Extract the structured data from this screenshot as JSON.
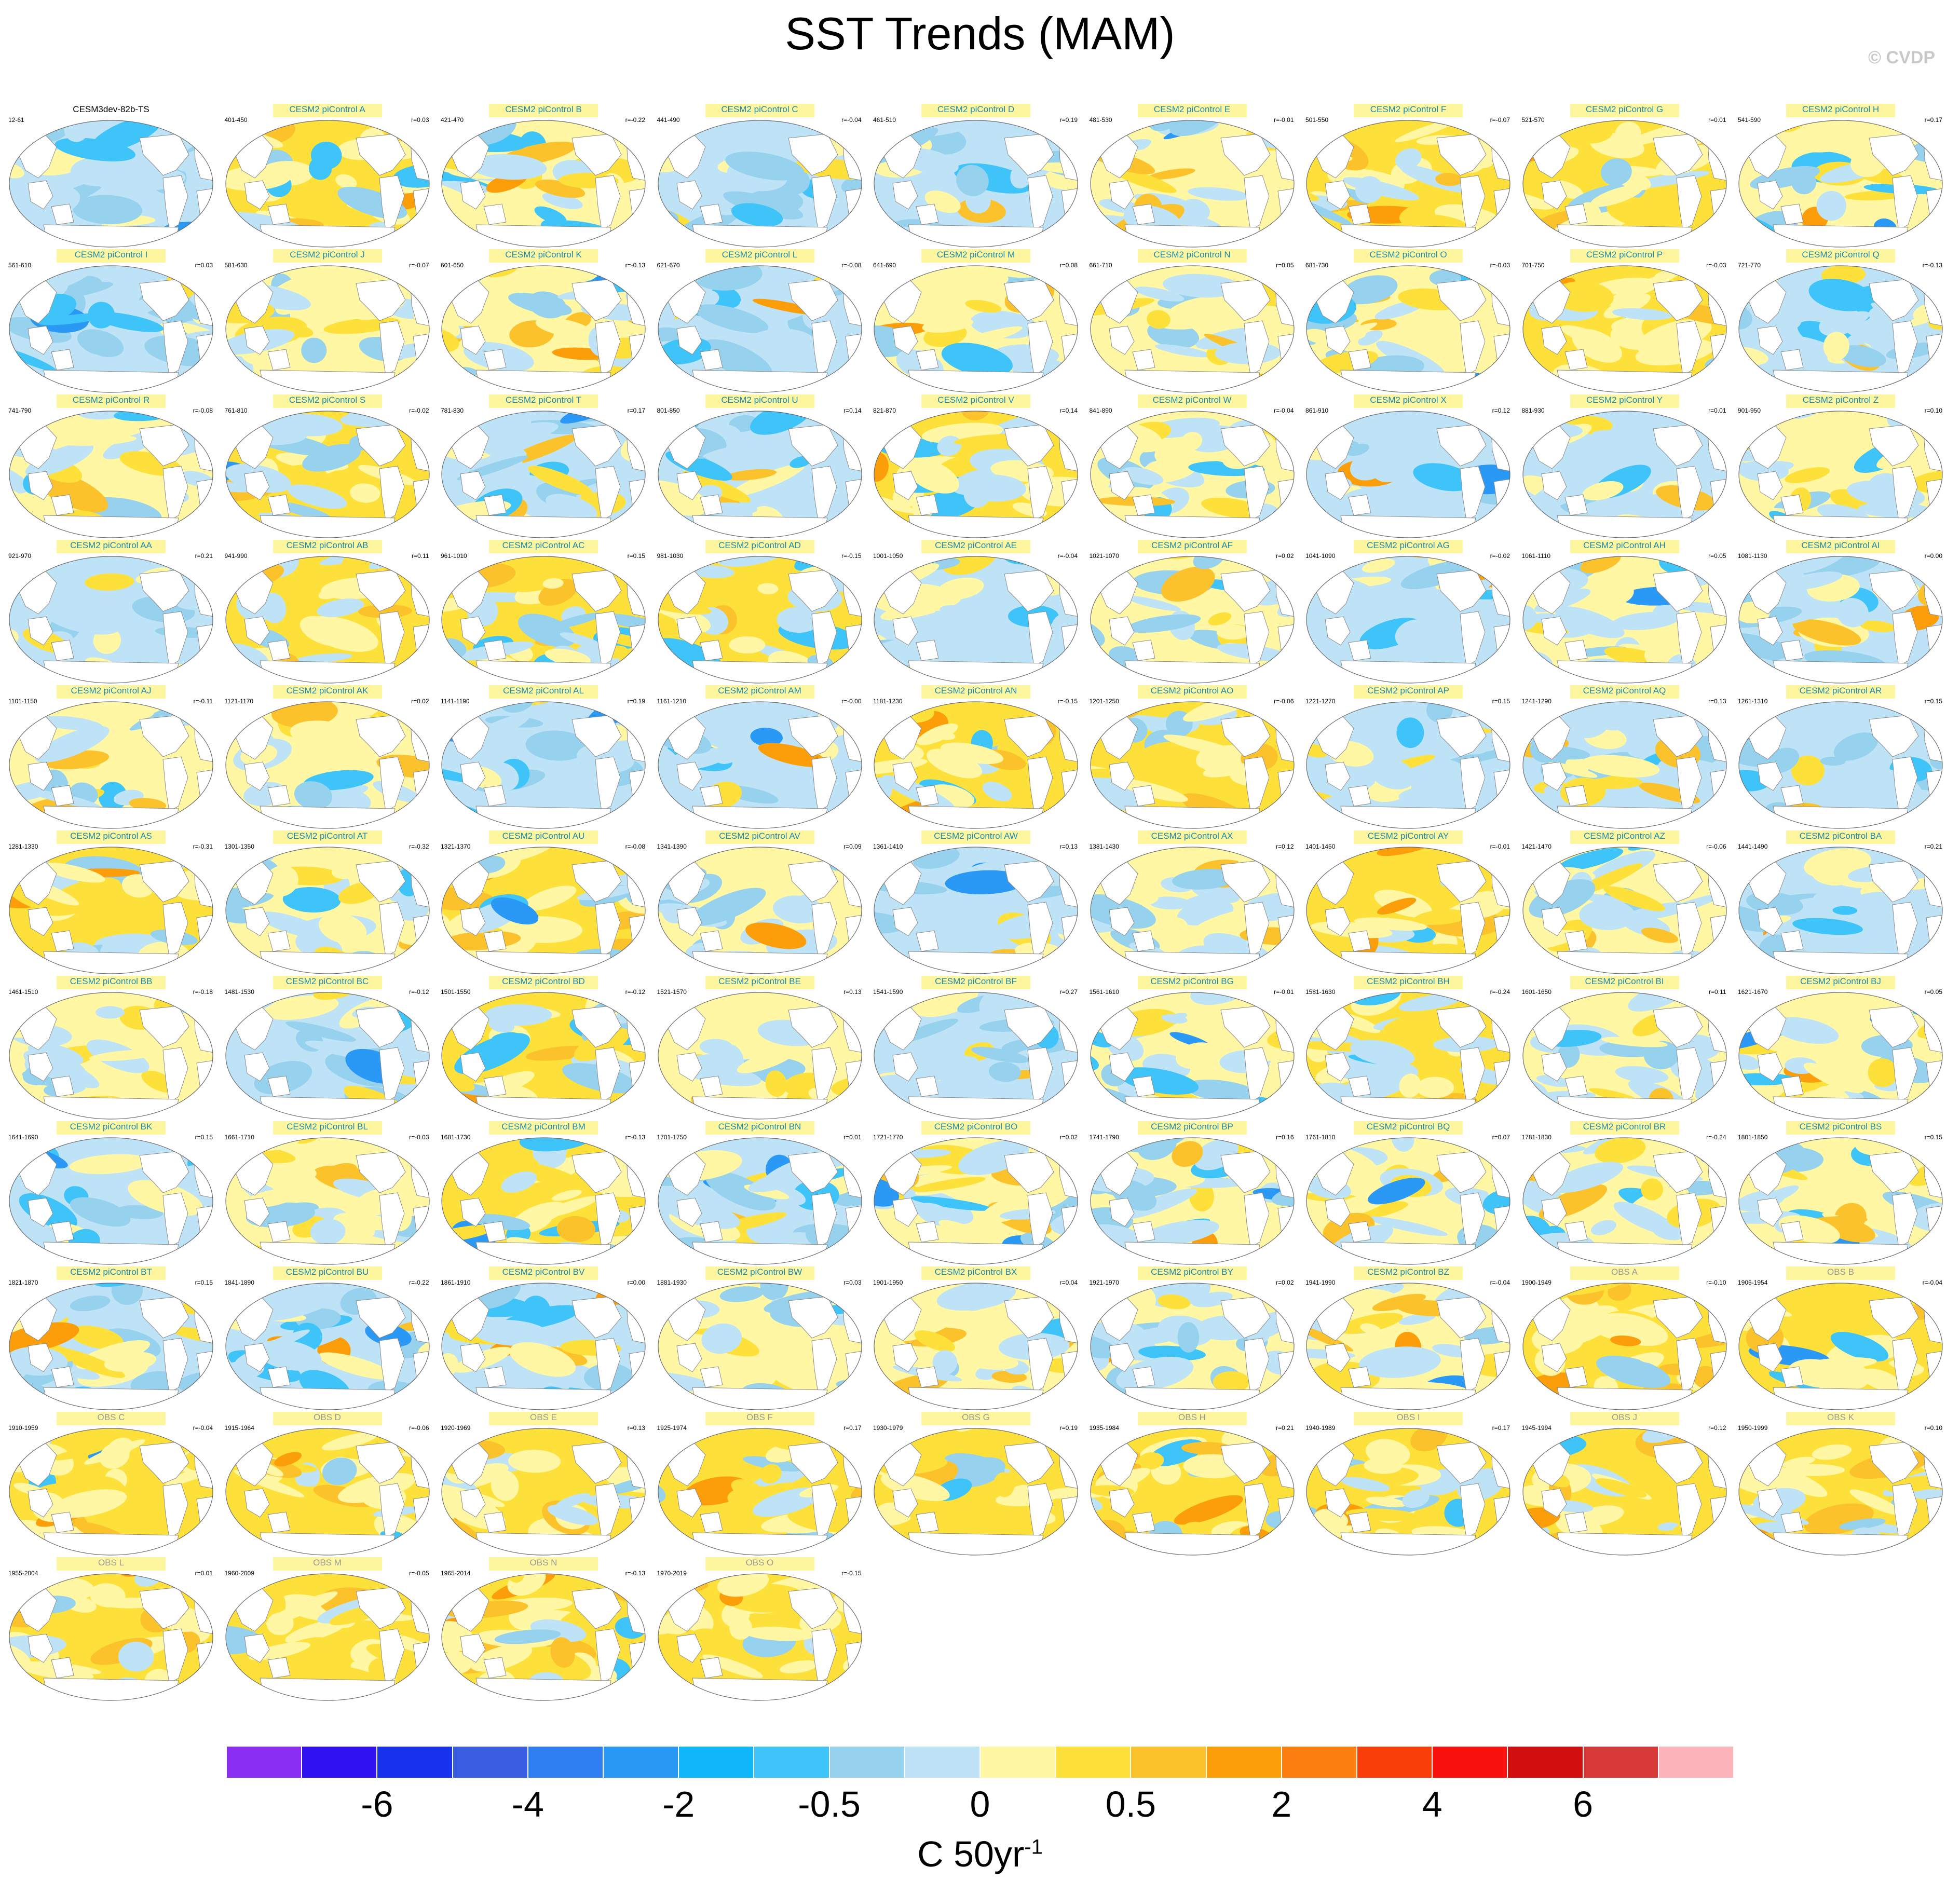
{
  "title": "SST Trends (MAM)",
  "credit": "© CVDP",
  "colorbar": {
    "colors": [
      "#8a2ff1",
      "#3011f1",
      "#1733f0",
      "#3a5ee2",
      "#2f7ef1",
      "#2a99f5",
      "#10b7fb",
      "#3ec4f8",
      "#96d2ee",
      "#bfe3f6",
      "#fff7a4",
      "#fee03a",
      "#fbc22b",
      "#fb9e0a",
      "#fb7e0e",
      "#fa3e0a",
      "#f8110d",
      "#d10f0f",
      "#d73838",
      "#fcb3b9"
    ],
    "labels": [
      {
        "text": "-6",
        "index": 2
      },
      {
        "text": "-4",
        "index": 4
      },
      {
        "text": "-2",
        "index": 6
      },
      {
        "text": "-0.5",
        "index": 8
      },
      {
        "text": "0",
        "index": 10
      },
      {
        "text": "0.5",
        "index": 12
      },
      {
        "text": "2",
        "index": 14
      },
      {
        "text": "4",
        "index": 16
      },
      {
        "text": "6",
        "index": 18
      }
    ],
    "units_main": "C 50yr",
    "units_sup": "-1"
  },
  "chart_data": {
    "type": "map-panels",
    "title": "SST Trends (MAM)",
    "units": "C 50yr-1",
    "levels": [
      "-6",
      "-4",
      "-2",
      "-0.5",
      "0",
      "0.5",
      "2",
      "4",
      "6"
    ],
    "panels": [
      {
        "title": "CESM3dev-82b-TS",
        "years": "12-61",
        "r": "",
        "kind": "base",
        "tone": 0.1
      },
      {
        "title": "CESM2 piControl A",
        "years": "401-450",
        "r": "r=0.03",
        "kind": "model",
        "tone": 0.7
      },
      {
        "title": "CESM2 piControl B",
        "years": "421-470",
        "r": "r=-0.22",
        "kind": "model",
        "tone": 0.5
      },
      {
        "title": "CESM2 piControl C",
        "years": "441-490",
        "r": "r=-0.04",
        "kind": "model",
        "tone": 0.2
      },
      {
        "title": "CESM2 piControl D",
        "years": "461-510",
        "r": "r=0.19",
        "kind": "model",
        "tone": 0.1
      },
      {
        "title": "CESM2 piControl E",
        "years": "481-530",
        "r": "r=-0.01",
        "kind": "model",
        "tone": 0.5
      },
      {
        "title": "CESM2 piControl F",
        "years": "501-550",
        "r": "r=-0.07",
        "kind": "model",
        "tone": 0.6
      },
      {
        "title": "CESM2 piControl G",
        "years": "521-570",
        "r": "r=0.01",
        "kind": "model",
        "tone": 0.7
      },
      {
        "title": "CESM2 piControl H",
        "years": "541-590",
        "r": "r=0.17",
        "kind": "model",
        "tone": 0.5
      },
      {
        "title": "CESM2 piControl I",
        "years": "561-610",
        "r": "r=0.03",
        "kind": "model",
        "tone": 0.1
      },
      {
        "title": "CESM2 piControl J",
        "years": "581-630",
        "r": "r=-0.07",
        "kind": "model",
        "tone": 0.5
      },
      {
        "title": "CESM2 piControl K",
        "years": "601-650",
        "r": "r=-0.13",
        "kind": "model",
        "tone": 0.5
      },
      {
        "title": "CESM2 piControl L",
        "years": "621-670",
        "r": "r=-0.08",
        "kind": "model",
        "tone": 0.1
      },
      {
        "title": "CESM2 piControl M",
        "years": "641-690",
        "r": "r=0.08",
        "kind": "model",
        "tone": 0.4
      },
      {
        "title": "CESM2 piControl N",
        "years": "661-710",
        "r": "r=0.05",
        "kind": "model",
        "tone": 0.5
      },
      {
        "title": "CESM2 piControl O",
        "years": "681-730",
        "r": "r=-0.03",
        "kind": "model",
        "tone": 0.4
      },
      {
        "title": "CESM2 piControl P",
        "years": "701-750",
        "r": "r=-0.03",
        "kind": "model",
        "tone": 0.8
      },
      {
        "title": "CESM2 piControl Q",
        "years": "721-770",
        "r": "r=-0.13",
        "kind": "model",
        "tone": 0.3
      },
      {
        "title": "CESM2 piControl R",
        "years": "741-790",
        "r": "r=-0.08",
        "kind": "model",
        "tone": 0.4
      },
      {
        "title": "CESM2 piControl S",
        "years": "761-810",
        "r": "r=-0.02",
        "kind": "model",
        "tone": 0.6
      },
      {
        "title": "CESM2 piControl T",
        "years": "781-830",
        "r": "r=0.17",
        "kind": "model",
        "tone": 0.3
      },
      {
        "title": "CESM2 piControl U",
        "years": "801-850",
        "r": "r=0.14",
        "kind": "model",
        "tone": 0.2
      },
      {
        "title": "CESM2 piControl V",
        "years": "821-870",
        "r": "r=0.14",
        "kind": "model",
        "tone": 0.6
      },
      {
        "title": "CESM2 piControl W",
        "years": "841-890",
        "r": "r=-0.04",
        "kind": "model",
        "tone": 0.5
      },
      {
        "title": "CESM2 piControl X",
        "years": "861-910",
        "r": "r=0.12",
        "kind": "model",
        "tone": 0.2
      },
      {
        "title": "CESM2 piControl Y",
        "years": "881-930",
        "r": "r=0.01",
        "kind": "model",
        "tone": 0.3
      },
      {
        "title": "CESM2 piControl Z",
        "years": "901-950",
        "r": "r=0.10",
        "kind": "model",
        "tone": 0.4
      },
      {
        "title": "CESM2 piControl AA",
        "years": "921-970",
        "r": "r=0.21",
        "kind": "model",
        "tone": 0.3
      },
      {
        "title": "CESM2 piControl AB",
        "years": "941-990",
        "r": "r=0.11",
        "kind": "model",
        "tone": 0.6
      },
      {
        "title": "CESM2 piControl AC",
        "years": "961-1010",
        "r": "r=0.15",
        "kind": "model",
        "tone": 0.6
      },
      {
        "title": "CESM2 piControl AD",
        "years": "981-1030",
        "r": "r=-0.15",
        "kind": "model",
        "tone": 0.6
      },
      {
        "title": "CESM2 piControl AE",
        "years": "1001-1050",
        "r": "r=-0.04",
        "kind": "model",
        "tone": 0.3
      },
      {
        "title": "CESM2 piControl AF",
        "years": "1021-1070",
        "r": "r=0.02",
        "kind": "model",
        "tone": 0.4
      },
      {
        "title": "CESM2 piControl AG",
        "years": "1041-1090",
        "r": "r=-0.02",
        "kind": "model",
        "tone": 0.3
      },
      {
        "title": "CESM2 piControl AH",
        "years": "1061-1110",
        "r": "r=0.05",
        "kind": "model",
        "tone": 0.4
      },
      {
        "title": "CESM2 piControl AI",
        "years": "1081-1130",
        "r": "r=0.00",
        "kind": "model",
        "tone": 0.3
      },
      {
        "title": "CESM2 piControl AJ",
        "years": "1101-1150",
        "r": "r=-0.11",
        "kind": "model",
        "tone": 0.4
      },
      {
        "title": "CESM2 piControl AK",
        "years": "1121-1170",
        "r": "r=0.02",
        "kind": "model",
        "tone": 0.5
      },
      {
        "title": "CESM2 piControl AL",
        "years": "1141-1190",
        "r": "r=0.19",
        "kind": "model",
        "tone": 0.2
      },
      {
        "title": "CESM2 piControl AM",
        "years": "1161-1210",
        "r": "r=-0.00",
        "kind": "model",
        "tone": 0.3
      },
      {
        "title": "CESM2 piControl AN",
        "years": "1181-1230",
        "r": "r=-0.15",
        "kind": "model",
        "tone": 0.6
      },
      {
        "title": "CESM2 piControl AO",
        "years": "1201-1250",
        "r": "r=-0.06",
        "kind": "model",
        "tone": 0.6
      },
      {
        "title": "CESM2 piControl AP",
        "years": "1221-1270",
        "r": "r=0.15",
        "kind": "model",
        "tone": 0.3
      },
      {
        "title": "CESM2 piControl AQ",
        "years": "1241-1290",
        "r": "r=0.13",
        "kind": "model",
        "tone": 0.3
      },
      {
        "title": "CESM2 piControl AR",
        "years": "1261-1310",
        "r": "r=0.15",
        "kind": "model",
        "tone": 0.3
      },
      {
        "title": "CESM2 piControl AS",
        "years": "1281-1330",
        "r": "r=-0.31",
        "kind": "model",
        "tone": 0.6
      },
      {
        "title": "CESM2 piControl AT",
        "years": "1301-1350",
        "r": "r=-0.32",
        "kind": "model",
        "tone": 0.5
      },
      {
        "title": "CESM2 piControl AU",
        "years": "1321-1370",
        "r": "r=-0.08",
        "kind": "model",
        "tone": 0.6
      },
      {
        "title": "CESM2 piControl AV",
        "years": "1341-1390",
        "r": "r=0.09",
        "kind": "model",
        "tone": 0.4
      },
      {
        "title": "CESM2 piControl AW",
        "years": "1361-1410",
        "r": "r=0.13",
        "kind": "model",
        "tone": 0.2
      },
      {
        "title": "CESM2 piControl AX",
        "years": "1381-1430",
        "r": "r=0.12",
        "kind": "model",
        "tone": 0.4
      },
      {
        "title": "CESM2 piControl AY",
        "years": "1401-1450",
        "r": "r=-0.01",
        "kind": "model",
        "tone": 0.6
      },
      {
        "title": "CESM2 piControl AZ",
        "years": "1421-1470",
        "r": "r=-0.06",
        "kind": "model",
        "tone": 0.4
      },
      {
        "title": "CESM2 piControl BA",
        "years": "1441-1490",
        "r": "r=0.21",
        "kind": "model",
        "tone": 0.3
      },
      {
        "title": "CESM2 piControl BB",
        "years": "1461-1510",
        "r": "r=-0.18",
        "kind": "model",
        "tone": 0.5
      },
      {
        "title": "CESM2 piControl BC",
        "years": "1481-1530",
        "r": "r=-0.12",
        "kind": "model",
        "tone": 0.3
      },
      {
        "title": "CESM2 piControl BD",
        "years": "1501-1550",
        "r": "r=-0.12",
        "kind": "model",
        "tone": 0.6
      },
      {
        "title": "CESM2 piControl BE",
        "years": "1521-1570",
        "r": "r=0.13",
        "kind": "model",
        "tone": 0.5
      },
      {
        "title": "CESM2 piControl BF",
        "years": "1541-1590",
        "r": "r=0.27",
        "kind": "model",
        "tone": 0.1
      },
      {
        "title": "CESM2 piControl BG",
        "years": "1561-1610",
        "r": "r=-0.01",
        "kind": "model",
        "tone": 0.4
      },
      {
        "title": "CESM2 piControl BH",
        "years": "1581-1630",
        "r": "r=-0.24",
        "kind": "model",
        "tone": 0.6
      },
      {
        "title": "CESM2 piControl BI",
        "years": "1601-1650",
        "r": "r=0.11",
        "kind": "model",
        "tone": 0.4
      },
      {
        "title": "CESM2 piControl BJ",
        "years": "1621-1670",
        "r": "r=0.05",
        "kind": "model",
        "tone": 0.4
      },
      {
        "title": "CESM2 piControl BK",
        "years": "1641-1690",
        "r": "r=0.15",
        "kind": "model",
        "tone": 0.2
      },
      {
        "title": "CESM2 piControl BL",
        "years": "1661-1710",
        "r": "r=-0.03",
        "kind": "model",
        "tone": 0.5
      },
      {
        "title": "CESM2 piControl BM",
        "years": "1681-1730",
        "r": "r=-0.13",
        "kind": "model",
        "tone": 0.6
      },
      {
        "title": "CESM2 piControl BN",
        "years": "1701-1750",
        "r": "r=0.01",
        "kind": "model",
        "tone": 0.3
      },
      {
        "title": "CESM2 piControl BO",
        "years": "1721-1770",
        "r": "r=0.02",
        "kind": "model",
        "tone": 0.5
      },
      {
        "title": "CESM2 piControl BP",
        "years": "1741-1790",
        "r": "r=0.16",
        "kind": "model",
        "tone": 0.4
      },
      {
        "title": "CESM2 piControl BQ",
        "years": "1761-1810",
        "r": "r=0.07",
        "kind": "model",
        "tone": 0.4
      },
      {
        "title": "CESM2 piControl BR",
        "years": "1781-1830",
        "r": "r=-0.24",
        "kind": "model",
        "tone": 0.4
      },
      {
        "title": "CESM2 piControl BS",
        "years": "1801-1850",
        "r": "r=0.15",
        "kind": "model",
        "tone": 0.4
      },
      {
        "title": "CESM2 piControl BT",
        "years": "1821-1870",
        "r": "r=0.15",
        "kind": "model",
        "tone": 0.3
      },
      {
        "title": "CESM2 piControl BU",
        "years": "1841-1890",
        "r": "r=-0.22",
        "kind": "model",
        "tone": 0.3
      },
      {
        "title": "CESM2 piControl BV",
        "years": "1861-1910",
        "r": "r=0.00",
        "kind": "model",
        "tone": 0.3
      },
      {
        "title": "CESM2 piControl BW",
        "years": "1881-1930",
        "r": "r=0.03",
        "kind": "model",
        "tone": 0.4
      },
      {
        "title": "CESM2 piControl BX",
        "years": "1901-1950",
        "r": "r=0.04",
        "kind": "model",
        "tone": 0.5
      },
      {
        "title": "CESM2 piControl BY",
        "years": "1921-1970",
        "r": "r=0.02",
        "kind": "model",
        "tone": 0.4
      },
      {
        "title": "CESM2 piControl BZ",
        "years": "1941-1990",
        "r": "r=-0.04",
        "kind": "model",
        "tone": 0.5
      },
      {
        "title": "OBS A",
        "years": "1900-1949",
        "r": "r=-0.10",
        "kind": "obs",
        "tone": 0.85
      },
      {
        "title": "OBS B",
        "years": "1905-1954",
        "r": "r=-0.04",
        "kind": "obs",
        "tone": 0.85
      },
      {
        "title": "OBS C",
        "years": "1910-1959",
        "r": "r=-0.04",
        "kind": "obs",
        "tone": 0.85
      },
      {
        "title": "OBS D",
        "years": "1915-1964",
        "r": "r=-0.06",
        "kind": "obs",
        "tone": 0.85
      },
      {
        "title": "OBS E",
        "years": "1920-1969",
        "r": "r=0.13",
        "kind": "obs",
        "tone": 0.85
      },
      {
        "title": "OBS F",
        "years": "1925-1974",
        "r": "r=0.17",
        "kind": "obs",
        "tone": 0.75
      },
      {
        "title": "OBS G",
        "years": "1930-1979",
        "r": "r=0.19",
        "kind": "obs",
        "tone": 0.7
      },
      {
        "title": "OBS H",
        "years": "1935-1984",
        "r": "r=0.21",
        "kind": "obs",
        "tone": 0.7
      },
      {
        "title": "OBS I",
        "years": "1940-1989",
        "r": "r=0.17",
        "kind": "obs",
        "tone": 0.7
      },
      {
        "title": "OBS J",
        "years": "1945-1994",
        "r": "r=0.12",
        "kind": "obs",
        "tone": 0.8
      },
      {
        "title": "OBS K",
        "years": "1950-1999",
        "r": "r=0.10",
        "kind": "obs",
        "tone": 0.8
      },
      {
        "title": "OBS L",
        "years": "1955-2004",
        "r": "r=0.01",
        "kind": "obs",
        "tone": 0.8
      },
      {
        "title": "OBS M",
        "years": "1960-2009",
        "r": "r=-0.05",
        "kind": "obs",
        "tone": 0.85
      },
      {
        "title": "OBS N",
        "years": "1965-2014",
        "r": "r=-0.13",
        "kind": "obs",
        "tone": 0.85
      },
      {
        "title": "OBS O",
        "years": "1970-2019",
        "r": "r=-0.15",
        "kind": "obs",
        "tone": 0.85
      }
    ]
  }
}
